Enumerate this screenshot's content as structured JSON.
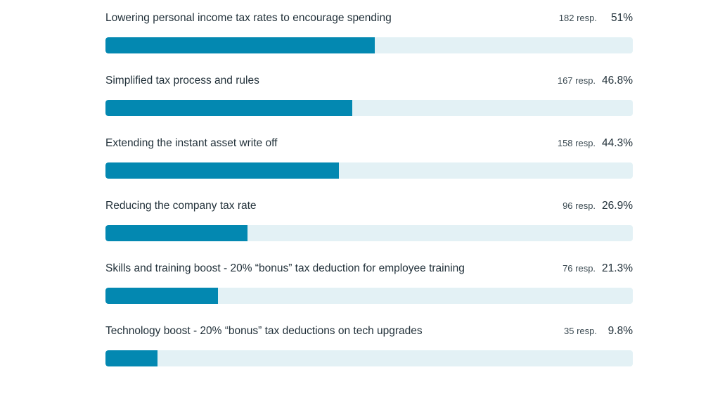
{
  "theme": {
    "bar_color": "#0388b1",
    "track_color": "#e3f1f5"
  },
  "chart_data": {
    "type": "bar",
    "orientation": "horizontal",
    "categories": [
      "Lowering personal income tax rates to encourage spending",
      "Simplified tax process and rules",
      "Extending the instant asset write off",
      "Reducing the company tax rate",
      "Skills and training boost - 20% “bonus” tax deduction for employee training",
      "Technology boost - 20% “bonus” tax deductions on tech upgrades"
    ],
    "values": [
      51,
      46.8,
      44.3,
      26.9,
      21.3,
      9.8
    ],
    "responses": [
      182,
      167,
      158,
      96,
      76,
      35
    ],
    "xlim": [
      0,
      100
    ]
  },
  "rows": [
    {
      "label": "Lowering personal income tax rates to encourage spending",
      "resp": "182 resp.",
      "pct": "51%"
    },
    {
      "label": "Simplified tax process and rules",
      "resp": "167 resp.",
      "pct": "46.8%"
    },
    {
      "label": "Extending the instant asset write off",
      "resp": "158 resp.",
      "pct": "44.3%"
    },
    {
      "label": "Reducing the company tax rate",
      "resp": "96 resp.",
      "pct": "26.9%"
    },
    {
      "label": "Skills and training boost - 20% “bonus” tax deduction for employee training",
      "resp": "76 resp.",
      "pct": "21.3%"
    },
    {
      "label": "Technology boost - 20% “bonus” tax deductions on tech upgrades",
      "resp": "35 resp.",
      "pct": "9.8%"
    }
  ]
}
